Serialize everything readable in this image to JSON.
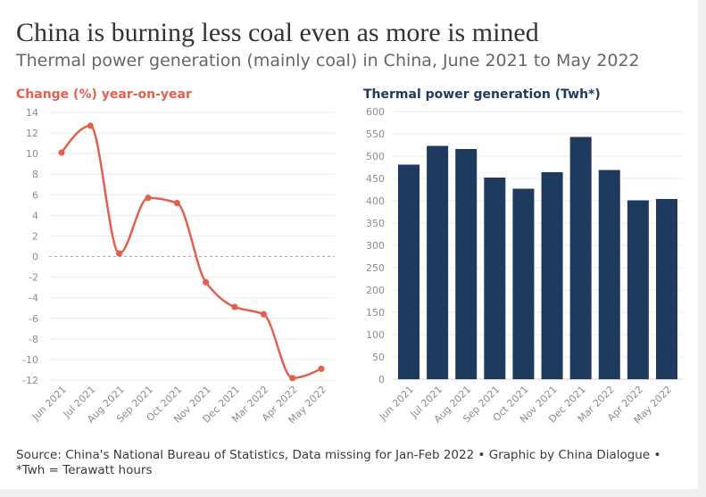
{
  "figure": {
    "title": "China is burning less coal even as more is mined",
    "subtitle": "Thermal power generation (mainly coal) in China, June 2021 to May 2022"
  },
  "chart_data": [
    {
      "type": "line",
      "title": "Change (%) year-on-year",
      "categories": [
        "Jun 2021",
        "Jul 2021",
        "Aug 2021",
        "Sep 2021",
        "Oct 2021",
        "Nov 2021",
        "Dec 2021",
        "Mar 2022",
        "Apr 2022",
        "May 2022"
      ],
      "values": [
        10.1,
        12.7,
        0.3,
        5.7,
        5.2,
        -2.5,
        -4.9,
        -5.6,
        -11.8,
        -10.9
      ],
      "ylim": [
        -12,
        14
      ],
      "yticks": [
        -12,
        -10,
        -8,
        -6,
        -4,
        -2,
        0,
        2,
        4,
        6,
        8,
        10,
        12,
        14
      ],
      "grid": true,
      "zero_line": true,
      "markers": true,
      "smooth": true,
      "color": "#e2604e"
    },
    {
      "type": "bar",
      "title": "Thermal power generation (Twh*)",
      "categories": [
        "Jun 2021",
        "Jul 2021",
        "Aug 2021",
        "Sep 2021",
        "Oct 2021",
        "Nov 2021",
        "Dec 2021",
        "Mar 2022",
        "Apr 2022",
        "May 2022"
      ],
      "values": [
        481,
        523,
        516,
        452,
        427,
        464,
        543,
        469,
        401,
        404
      ],
      "ylim": [
        0,
        600
      ],
      "yticks": [
        0,
        50,
        100,
        150,
        200,
        250,
        300,
        350,
        400,
        450,
        500,
        550,
        600
      ],
      "grid": true,
      "color": "#1e3a5f"
    }
  ],
  "footer": {
    "source": "Source: China's National Bureau of Statistics, Data missing for Jan-Feb 2022 • Graphic by China Dialogue •",
    "note": "*Twh = Terawatt hours"
  }
}
